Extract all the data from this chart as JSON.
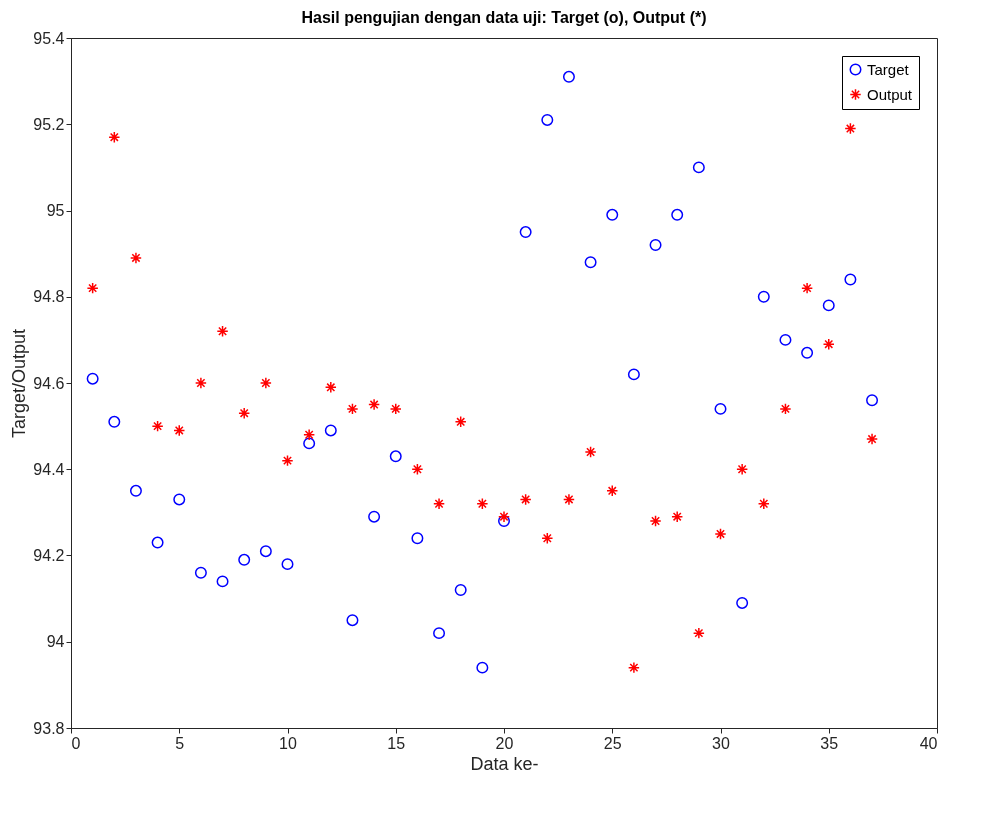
{
  "chart_data": {
    "type": "scatter",
    "title": "Hasil pengujian dengan data uji: Target (o), Output (*)",
    "xlabel": "Data ke-",
    "ylabel": "Target/Output",
    "x": [
      1,
      2,
      3,
      4,
      5,
      6,
      7,
      8,
      9,
      10,
      11,
      12,
      13,
      14,
      15,
      16,
      17,
      18,
      19,
      20,
      21,
      22,
      23,
      24,
      25,
      26,
      27,
      28,
      29,
      30,
      31,
      32,
      33,
      34,
      35,
      36,
      37
    ],
    "series": [
      {
        "name": "Target",
        "color": "#0000ff",
        "marker": "circle",
        "values": [
          94.61,
          94.51,
          94.35,
          94.23,
          94.33,
          94.16,
          94.14,
          94.19,
          94.21,
          94.18,
          94.46,
          94.49,
          94.05,
          94.29,
          94.43,
          94.24,
          94.02,
          94.12,
          93.94,
          94.28,
          94.95,
          95.21,
          95.31,
          94.88,
          94.99,
          94.62,
          94.92,
          94.99,
          95.1,
          94.54,
          94.09,
          94.8,
          94.7,
          94.67,
          94.78,
          94.84,
          94.56
        ]
      },
      {
        "name": "Output",
        "color": "#ff0000",
        "marker": "cross",
        "values": [
          94.82,
          95.17,
          94.89,
          94.5,
          94.49,
          94.6,
          94.72,
          94.53,
          94.6,
          94.42,
          94.48,
          94.59,
          94.54,
          94.55,
          94.54,
          94.4,
          94.32,
          94.51,
          94.32,
          94.29,
          94.33,
          94.24,
          94.33,
          94.44,
          94.35,
          93.94,
          94.28,
          94.29,
          94.02,
          94.25,
          94.4,
          94.32,
          94.54,
          94.82,
          94.69,
          95.19,
          94.47
        ]
      }
    ],
    "xlim": [
      0,
      40
    ],
    "xticks": [
      0,
      5,
      10,
      15,
      20,
      25,
      30,
      35,
      40
    ],
    "ylim": [
      93.8,
      95.4
    ],
    "yticks": [
      93.8,
      94,
      94.2,
      94.4,
      94.6,
      94.8,
      95,
      95.2,
      95.4
    ],
    "grid": false,
    "legend": "top right"
  }
}
